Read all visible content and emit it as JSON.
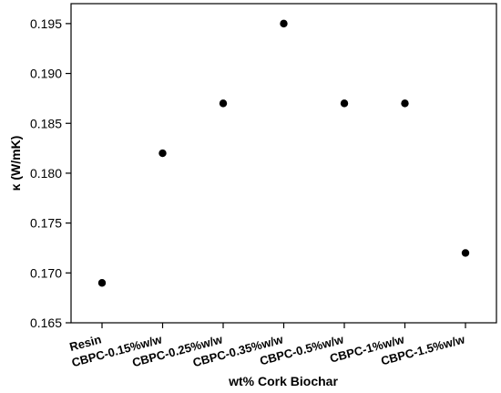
{
  "chart_data": {
    "type": "scatter",
    "title": "",
    "xlabel": "wt% Cork Biochar",
    "ylabel": "κ (W/mK)",
    "categories": [
      "Resin",
      "CBPC-0.15%w/w",
      "CBPC-0.25%w/w",
      "CBPC-0.35%w/w",
      "CBPC-0.5%w/w",
      "CBPC-1%w/w",
      "CBPC-1.5%w/w"
    ],
    "values": [
      0.169,
      0.182,
      0.187,
      0.195,
      0.187,
      0.187,
      0.172
    ],
    "ylim": [
      0.165,
      0.197
    ],
    "yticks": [
      "0.165",
      "0.170",
      "0.175",
      "0.180",
      "0.185",
      "0.190",
      "0.195"
    ],
    "grid": false,
    "marker_color": "#000000"
  }
}
